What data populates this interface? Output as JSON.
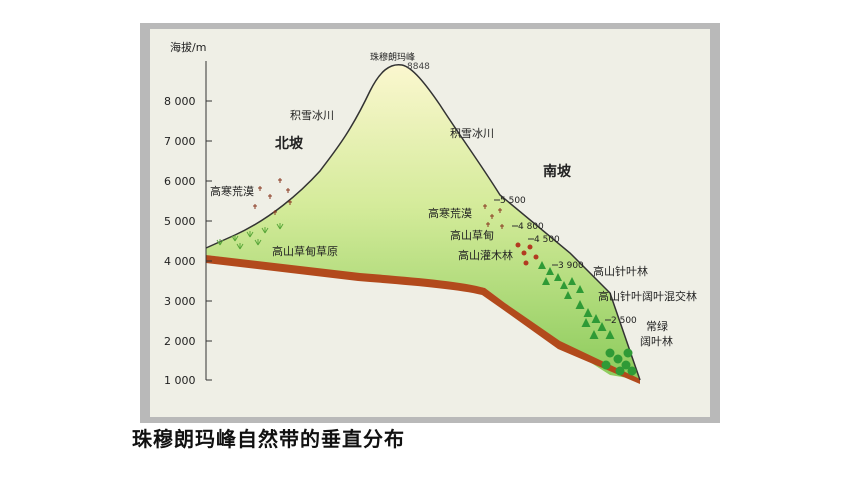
{
  "figure": {
    "axis_label": "海拔/m",
    "ticks": [
      {
        "label": "8 000",
        "value": 8000
      },
      {
        "label": "7 000",
        "value": 7000
      },
      {
        "label": "6 000",
        "value": 6000
      },
      {
        "label": "5 000",
        "value": 5000
      },
      {
        "label": "4 000",
        "value": 4000
      },
      {
        "label": "3 000",
        "value": 3000
      },
      {
        "label": "2 000",
        "value": 2000
      },
      {
        "label": "1 000",
        "value": 1000
      }
    ],
    "peak_name": "珠穆朗玛峰",
    "peak_height": "8848",
    "north_slope": "北坡",
    "south_slope": "南坡",
    "north_zones": {
      "snow": "积雪冰川",
      "desert": "高寒荒漠",
      "meadow_steppe": "高山草甸草原"
    },
    "south_zones": {
      "snow": "积雪冰川",
      "desert": "高寒荒漠",
      "meadow": "高山草甸",
      "shrub": "高山灌木林",
      "conifer": "高山针叶林",
      "mixed": "高山针叶阔叶混交林",
      "evergreen_1": "常绿",
      "evergreen_2": "阔叶林"
    },
    "south_boundaries": [
      "5 500",
      "4 800",
      "4 500",
      "3 900",
      "2 500"
    ],
    "colors": {
      "frame": "#b7b7b7",
      "ground_top": "#f7f3c6",
      "ground_green": "#9fd36c",
      "soil": "#b24a1c",
      "tree": "#2f9a36",
      "shrub": "#b23a20"
    }
  },
  "caption": "珠穆朗玛峰自然带的垂直分布"
}
